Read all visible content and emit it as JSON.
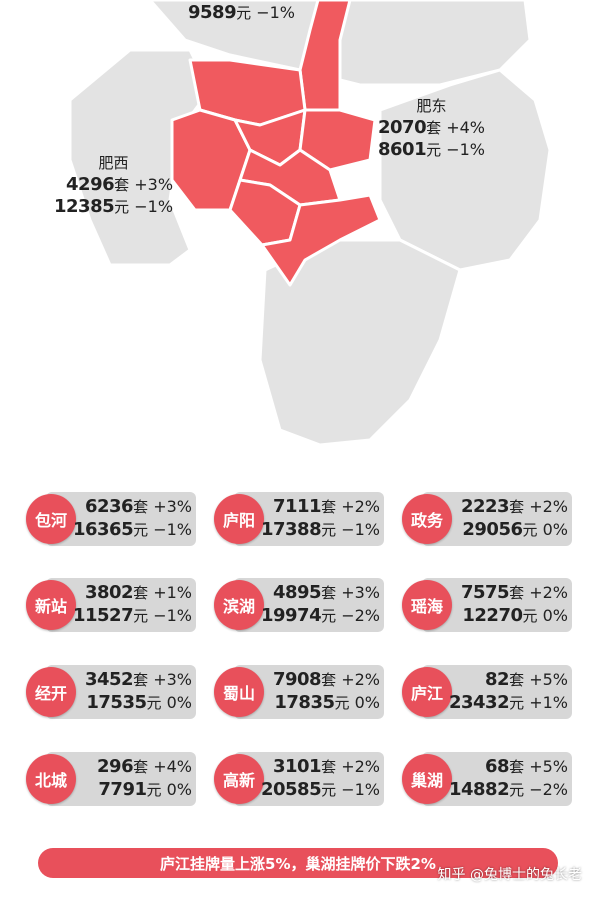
{
  "map": {
    "top_label": {
      "price": "9589",
      "unit": "元",
      "change": "−1%"
    },
    "feidong": {
      "name": "肥东",
      "listings": "2070",
      "listings_unit": "套",
      "listings_change": "+4%",
      "price": "8601",
      "price_unit": "元",
      "price_change": "−1%"
    },
    "feixi": {
      "name": "肥西",
      "listings": "4296",
      "listings_unit": "套",
      "listings_change": "+3%",
      "price": "12385",
      "price_unit": "元",
      "price_change": "−1%"
    },
    "colors": {
      "highlight": "#f05a5f",
      "land": "#e3e3e3",
      "border": "#ffffff"
    }
  },
  "districts": [
    {
      "name": "包河",
      "listings": "6236",
      "listings_unit": "套",
      "listings_change": "+3%",
      "price": "16365",
      "price_unit": "元",
      "price_change": "−1%"
    },
    {
      "name": "庐阳",
      "listings": "7111",
      "listings_unit": "套",
      "listings_change": "+2%",
      "price": "17388",
      "price_unit": "元",
      "price_change": "−1%"
    },
    {
      "name": "政务",
      "listings": "2223",
      "listings_unit": "套",
      "listings_change": "+2%",
      "price": "29056",
      "price_unit": "元",
      "price_change": "0%"
    },
    {
      "name": "新站",
      "listings": "3802",
      "listings_unit": "套",
      "listings_change": "+1%",
      "price": "11527",
      "price_unit": "元",
      "price_change": "−1%"
    },
    {
      "name": "滨湖",
      "listings": "4895",
      "listings_unit": "套",
      "listings_change": "+3%",
      "price": "19974",
      "price_unit": "元",
      "price_change": "−2%"
    },
    {
      "name": "瑶海",
      "listings": "7575",
      "listings_unit": "套",
      "listings_change": "+2%",
      "price": "12270",
      "price_unit": "元",
      "price_change": "0%"
    },
    {
      "name": "经开",
      "listings": "3452",
      "listings_unit": "套",
      "listings_change": "+3%",
      "price": "17535",
      "price_unit": "元",
      "price_change": "0%"
    },
    {
      "name": "蜀山",
      "listings": "7908",
      "listings_unit": "套",
      "listings_change": "+2%",
      "price": "17835",
      "price_unit": "元",
      "price_change": "0%"
    },
    {
      "name": "庐江",
      "listings": "82",
      "listings_unit": "套",
      "listings_change": "+5%",
      "price": "23432",
      "price_unit": "元",
      "price_change": "+1%"
    },
    {
      "name": "北城",
      "listings": "296",
      "listings_unit": "套",
      "listings_change": "+4%",
      "price": "7791",
      "price_unit": "元",
      "price_change": "0%"
    },
    {
      "name": "高新",
      "listings": "3101",
      "listings_unit": "套",
      "listings_change": "+2%",
      "price": "20585",
      "price_unit": "元",
      "price_change": "−1%"
    },
    {
      "name": "巢湖",
      "listings": "68",
      "listings_unit": "套",
      "listings_change": "+5%",
      "price": "14882",
      "price_unit": "元",
      "price_change": "−2%"
    }
  ],
  "banner": {
    "text": "庐江挂牌量上涨5%，巢湖挂牌价下跌2%"
  },
  "watermark": {
    "text": "知乎 @兔博士的兔长老"
  }
}
